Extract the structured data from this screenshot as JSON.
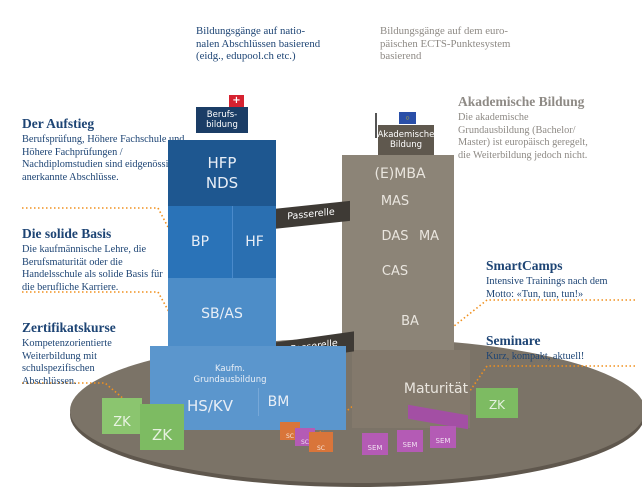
{
  "header": {
    "national": "Bildungsgänge auf natio-\nnalen Abschlüssen basierend\n(eidg., edupool.ch etc.)",
    "european": "Bildungsgänge auf dem euro-\npäischen ECTS-Punktesystem\nbasierend"
  },
  "left_notes": [
    {
      "title": "Der Aufstieg",
      "text": "Berufsprüfung, Höhere Fachschule und Höhere Fachprüfungen / Nachdiplomstudien sind eidgenössisch anerkannte Abschlüsse."
    },
    {
      "title": "Die solide Basis",
      "text": "Die kaufmännische Lehre, die Berufsmaturität oder die Handelsschule als solide Basis für die berufliche Karriere."
    },
    {
      "title": "Zertifikatskurse",
      "text": "Kompetenzorientierte Weiterbildung mit schulspezifischen Abschlüssen."
    }
  ],
  "right_notes": [
    {
      "title": "Akademische Bildung",
      "text": "Die akademische Grundausbildung (Bachelor/ Master) ist europäisch geregelt, die Weiterbildung jedoch nicht."
    },
    {
      "title": "SmartCamps",
      "text": "Intensive Trainings nach dem Motto: «Tun, tun, tun!»"
    },
    {
      "title": "Seminare",
      "text": "Kurz, kompakt, aktuell!"
    }
  ],
  "berufsbildung": {
    "sign": "Berufs-\nbildung",
    "hfp_nds": "HFP\nNDS",
    "bp": "BP",
    "hf": "HF",
    "sb_as": "SB/AS",
    "kaufm": "Kaufm.\nGrundausbildung",
    "hs_kv": "HS/KV",
    "bm": "BM"
  },
  "akademisch": {
    "sign": "Akademische\nBildung",
    "emba": "(E)MBA",
    "mas": "MAS",
    "das": "DAS",
    "ma": "MA",
    "cas": "CAS",
    "ba": "BA",
    "maturitaet": "Maturität"
  },
  "passerelle": [
    "Passerelle",
    "Passerelle"
  ],
  "cubes": {
    "zk": "ZK",
    "sem": "SEM",
    "sc": "SC"
  },
  "colors": {
    "blue_dark": "#1e5790",
    "blue_mid": "#2a73b8",
    "blue_light": "#4d8dc8",
    "stone": "#8c8477",
    "ground": "#7b7367",
    "accent_dots": "#f0901e",
    "green": "#7dbb62",
    "purple": "#b45bb5",
    "orange": "#d9753a"
  }
}
